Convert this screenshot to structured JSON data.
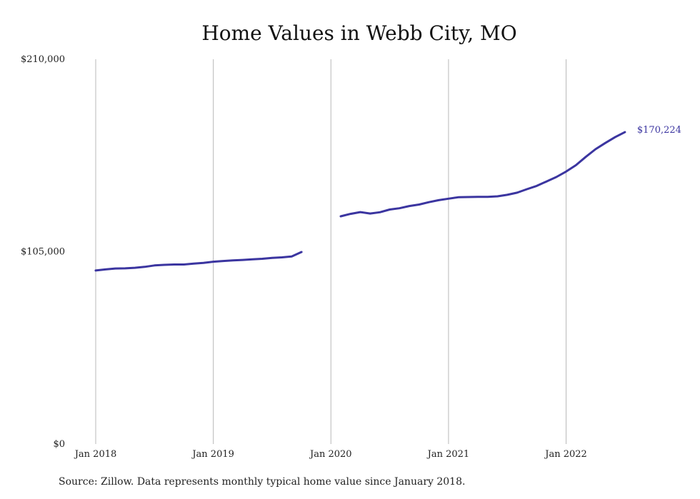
{
  "chart_data": {
    "type": "line",
    "title": "Home Values in Webb City, MO",
    "xlabel": "",
    "ylabel": "",
    "ylim": [
      0,
      210000
    ],
    "yticks": [
      {
        "value": 0,
        "label": "$0"
      },
      {
        "value": 105000,
        "label": "$105,000"
      },
      {
        "value": 210000,
        "label": "$210,000"
      }
    ],
    "xticks": [
      {
        "value": "2018-01",
        "label": "Jan 2018"
      },
      {
        "value": "2019-01",
        "label": "Jan 2019"
      },
      {
        "value": "2020-01",
        "label": "Jan 2020"
      },
      {
        "value": "2021-01",
        "label": "Jan 2021"
      },
      {
        "value": "2022-01",
        "label": "Jan 2022"
      }
    ],
    "grid": "vertical",
    "series": [
      {
        "color": "#3b35a0",
        "points": [
          {
            "x": "2018-01",
            "y": 94700
          },
          {
            "x": "2018-02",
            "y": 95300
          },
          {
            "x": "2018-03",
            "y": 95800
          },
          {
            "x": "2018-04",
            "y": 95900
          },
          {
            "x": "2018-05",
            "y": 96200
          },
          {
            "x": "2018-06",
            "y": 96700
          },
          {
            "x": "2018-07",
            "y": 97500
          },
          {
            "x": "2018-08",
            "y": 97800
          },
          {
            "x": "2018-09",
            "y": 98000
          },
          {
            "x": "2018-10",
            "y": 98000
          },
          {
            "x": "2018-11",
            "y": 98500
          },
          {
            "x": "2018-12",
            "y": 98900
          },
          {
            "x": "2019-01",
            "y": 99500
          },
          {
            "x": "2019-02",
            "y": 99900
          },
          {
            "x": "2019-03",
            "y": 100200
          },
          {
            "x": "2019-04",
            "y": 100500
          },
          {
            "x": "2019-05",
            "y": 100800
          },
          {
            "x": "2019-06",
            "y": 101100
          },
          {
            "x": "2019-07",
            "y": 101600
          },
          {
            "x": "2019-08",
            "y": 101900
          },
          {
            "x": "2019-09",
            "y": 102400
          },
          {
            "x": "2019-10",
            "y": 104800
          },
          {
            "x": "2019-11",
            "y": null
          },
          {
            "x": "2019-12",
            "y": null
          },
          {
            "x": "2020-01",
            "y": null
          },
          {
            "x": "2020-02",
            "y": 124300
          },
          {
            "x": "2020-03",
            "y": 125600
          },
          {
            "x": "2020-04",
            "y": 126600
          },
          {
            "x": "2020-05",
            "y": 125800
          },
          {
            "x": "2020-06",
            "y": 126500
          },
          {
            "x": "2020-07",
            "y": 128000
          },
          {
            "x": "2020-08",
            "y": 128700
          },
          {
            "x": "2020-09",
            "y": 129900
          },
          {
            "x": "2020-10",
            "y": 130700
          },
          {
            "x": "2020-11",
            "y": 132000
          },
          {
            "x": "2020-12",
            "y": 133100
          },
          {
            "x": "2021-01",
            "y": 133900
          },
          {
            "x": "2021-02",
            "y": 134700
          },
          {
            "x": "2021-03",
            "y": 134800
          },
          {
            "x": "2021-04",
            "y": 134900
          },
          {
            "x": "2021-05",
            "y": 134900
          },
          {
            "x": "2021-06",
            "y": 135200
          },
          {
            "x": "2021-07",
            "y": 136000
          },
          {
            "x": "2021-08",
            "y": 137200
          },
          {
            "x": "2021-09",
            "y": 139100
          },
          {
            "x": "2021-10",
            "y": 140900
          },
          {
            "x": "2021-11",
            "y": 143300
          },
          {
            "x": "2021-12",
            "y": 145700
          },
          {
            "x": "2022-01",
            "y": 148700
          },
          {
            "x": "2022-02",
            "y": 152200
          },
          {
            "x": "2022-03",
            "y": 156700
          },
          {
            "x": "2022-04",
            "y": 160900
          },
          {
            "x": "2022-05",
            "y": 164300
          },
          {
            "x": "2022-06",
            "y": 167500
          },
          {
            "x": "2022-07",
            "y": 170224
          }
        ]
      }
    ],
    "annotations": [
      {
        "x": "2022-07",
        "y": 170224,
        "text": "$170,224",
        "color": "#3b35a0"
      }
    ],
    "source": "Source: Zillow. Data represents monthly typical home value since January 2018."
  }
}
